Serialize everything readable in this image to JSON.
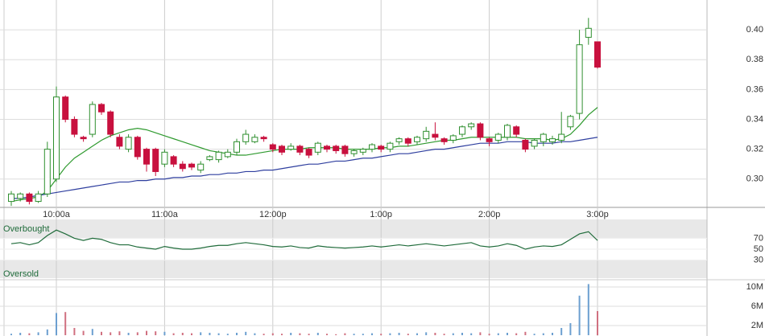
{
  "chart_data": [
    {
      "type": "candlestick",
      "categories": [
        null,
        null,
        null,
        null,
        null,
        "10:00a",
        null,
        null,
        null,
        null,
        null,
        null,
        null,
        null,
        null,
        null,
        null,
        "11:00a",
        null,
        null,
        null,
        null,
        null,
        null,
        null,
        null,
        null,
        null,
        null,
        "12:00p",
        null,
        null,
        null,
        null,
        null,
        null,
        null,
        null,
        null,
        null,
        null,
        "1:00p",
        null,
        null,
        null,
        null,
        null,
        null,
        null,
        null,
        null,
        null,
        null,
        "2:00p",
        null,
        null,
        null,
        null,
        null,
        null,
        null,
        null,
        null,
        null,
        null,
        "3:00p"
      ],
      "open": [
        0.285,
        0.287,
        0.29,
        0.285,
        0.29,
        0.3,
        0.355,
        0.34,
        0.328,
        0.33,
        0.35,
        0.345,
        0.328,
        0.32,
        0.328,
        0.32,
        0.32,
        0.31,
        0.315,
        0.31,
        0.31,
        0.306,
        0.313,
        0.313,
        0.315,
        0.318,
        0.325,
        0.325,
        0.328,
        0.323,
        0.322,
        0.32,
        0.322,
        0.32,
        0.318,
        0.322,
        0.322,
        0.322,
        0.317,
        0.318,
        0.32,
        0.322,
        0.32,
        0.325,
        0.327,
        0.325,
        0.327,
        0.33,
        0.327,
        0.326,
        0.33,
        0.335,
        0.337,
        0.327,
        0.326,
        0.328,
        0.335,
        0.326,
        0.322,
        0.325,
        0.325,
        0.326,
        0.335,
        0.344,
        0.395,
        0.392
      ],
      "high": [
        0.292,
        0.291,
        0.291,
        0.292,
        0.325,
        0.362,
        0.356,
        0.342,
        0.329,
        0.352,
        0.351,
        0.346,
        0.33,
        0.33,
        0.329,
        0.321,
        0.321,
        0.32,
        0.316,
        0.312,
        0.311,
        0.312,
        0.316,
        0.319,
        0.32,
        0.327,
        0.333,
        0.33,
        0.329,
        0.324,
        0.323,
        0.324,
        0.323,
        0.321,
        0.325,
        0.323,
        0.323,
        0.323,
        0.32,
        0.321,
        0.324,
        0.323,
        0.325,
        0.328,
        0.328,
        0.329,
        0.335,
        0.338,
        0.328,
        0.33,
        0.336,
        0.338,
        0.338,
        0.328,
        0.331,
        0.337,
        0.336,
        0.327,
        0.327,
        0.331,
        0.329,
        0.345,
        0.343,
        0.4,
        0.408,
        0.392
      ],
      "low": [
        0.282,
        0.285,
        0.283,
        0.284,
        0.288,
        0.298,
        0.338,
        0.328,
        0.325,
        0.328,
        0.343,
        0.328,
        0.32,
        0.318,
        0.313,
        0.305,
        0.302,
        0.308,
        0.308,
        0.305,
        0.306,
        0.304,
        0.312,
        0.311,
        0.314,
        0.316,
        0.323,
        0.324,
        0.325,
        0.318,
        0.316,
        0.319,
        0.316,
        0.314,
        0.316,
        0.318,
        0.317,
        0.315,
        0.315,
        0.316,
        0.318,
        0.318,
        0.318,
        0.323,
        0.322,
        0.323,
        0.325,
        0.326,
        0.323,
        0.324,
        0.328,
        0.333,
        0.326,
        0.322,
        0.324,
        0.326,
        0.328,
        0.318,
        0.32,
        0.322,
        0.323,
        0.324,
        0.333,
        0.34,
        0.39,
        0.374
      ],
      "close": [
        0.29,
        0.29,
        0.285,
        0.29,
        0.32,
        0.355,
        0.34,
        0.33,
        0.327,
        0.35,
        0.345,
        0.33,
        0.322,
        0.328,
        0.315,
        0.31,
        0.305,
        0.318,
        0.31,
        0.307,
        0.308,
        0.31,
        0.315,
        0.318,
        0.318,
        0.325,
        0.33,
        0.328,
        0.327,
        0.32,
        0.318,
        0.322,
        0.318,
        0.316,
        0.324,
        0.32,
        0.319,
        0.317,
        0.319,
        0.32,
        0.323,
        0.32,
        0.324,
        0.327,
        0.324,
        0.328,
        0.332,
        0.328,
        0.325,
        0.329,
        0.335,
        0.337,
        0.328,
        0.325,
        0.33,
        0.336,
        0.33,
        0.32,
        0.326,
        0.33,
        0.327,
        0.33,
        0.342,
        0.39,
        0.401,
        0.375
      ],
      "up_color": "#2f8f2f",
      "down_color": "#c8103e",
      "lines": [
        {
          "color": "#2f9a2f",
          "values": [
            0.285,
            0.286,
            0.287,
            0.288,
            0.292,
            0.3,
            0.308,
            0.314,
            0.318,
            0.322,
            0.326,
            0.329,
            0.331,
            0.333,
            0.334,
            0.333,
            0.331,
            0.329,
            0.327,
            0.325,
            0.323,
            0.321,
            0.319,
            0.318,
            0.317,
            0.316,
            0.316,
            0.317,
            0.318,
            0.319,
            0.32,
            0.32,
            0.32,
            0.321,
            0.321,
            0.321,
            0.321,
            0.32,
            0.32,
            0.32,
            0.32,
            0.321,
            0.321,
            0.322,
            0.322,
            0.323,
            0.324,
            0.325,
            0.326,
            0.326,
            0.327,
            0.328,
            0.328,
            0.328,
            0.328,
            0.328,
            0.328,
            0.327,
            0.327,
            0.327,
            0.326,
            0.327,
            0.33,
            0.336,
            0.343,
            0.348
          ]
        },
        {
          "color": "#2f3f9f",
          "values": [
            0.287,
            0.287,
            0.288,
            0.289,
            0.29,
            0.291,
            0.292,
            0.293,
            0.294,
            0.295,
            0.296,
            0.297,
            0.298,
            0.298,
            0.299,
            0.299,
            0.3,
            0.3,
            0.301,
            0.301,
            0.302,
            0.302,
            0.303,
            0.303,
            0.304,
            0.304,
            0.305,
            0.305,
            0.306,
            0.306,
            0.307,
            0.308,
            0.309,
            0.31,
            0.31,
            0.311,
            0.312,
            0.312,
            0.313,
            0.314,
            0.314,
            0.315,
            0.316,
            0.317,
            0.317,
            0.318,
            0.319,
            0.32,
            0.32,
            0.321,
            0.322,
            0.323,
            0.324,
            0.324,
            0.324,
            0.325,
            0.325,
            0.325,
            0.324,
            0.324,
            0.324,
            0.325,
            0.325,
            0.326,
            0.327,
            0.328
          ]
        }
      ],
      "ylim": [
        0.281,
        0.42
      ],
      "yticks": [
        {
          "value": 0.3,
          "label": "0.30"
        },
        0.32,
        0.34,
        0.36,
        0.38,
        {
          "value": 0.4,
          "label": "0.40"
        }
      ],
      "grid": true
    },
    {
      "type": "line",
      "annotations": [
        "Overbought",
        "Oversold"
      ],
      "color": "#1f6b3a",
      "values": [
        60,
        62,
        58,
        62,
        75,
        85,
        78,
        70,
        66,
        70,
        68,
        62,
        58,
        58,
        54,
        52,
        50,
        55,
        52,
        50,
        50,
        52,
        55,
        57,
        57,
        60,
        62,
        60,
        58,
        55,
        54,
        56,
        53,
        52,
        56,
        54,
        53,
        52,
        53,
        54,
        56,
        54,
        56,
        58,
        56,
        58,
        60,
        58,
        56,
        58,
        60,
        62,
        56,
        54,
        56,
        60,
        57,
        50,
        54,
        56,
        55,
        58,
        68,
        78,
        82,
        66
      ],
      "ylim": [
        0,
        100
      ],
      "yticks": [
        30,
        50,
        70
      ]
    },
    {
      "type": "bar",
      "up_color": "#6c9fd0",
      "down_color": "#d07080",
      "values": [
        300000,
        500000,
        400000,
        600000,
        1200000,
        4600000,
        4800000,
        1500000,
        900000,
        1300000,
        700000,
        600000,
        800000,
        500000,
        600000,
        900000,
        800000,
        700000,
        400000,
        500000,
        400000,
        600000,
        500000,
        400000,
        300000,
        500000,
        700000,
        400000,
        300000,
        400000,
        300000,
        500000,
        400000,
        300000,
        500000,
        300000,
        200000,
        400000,
        300000,
        300000,
        400000,
        300000,
        400000,
        500000,
        300000,
        400000,
        600000,
        500000,
        300000,
        400000,
        500000,
        400000,
        600000,
        300000,
        400000,
        500000,
        400000,
        700000,
        300000,
        400000,
        500000,
        1500000,
        2500000,
        8200000,
        10600000,
        5000000
      ],
      "ylim": [
        0,
        11000000
      ],
      "yticks": [
        {
          "value": 2000000,
          "label": "2M"
        },
        {
          "value": 6000000,
          "label": "6M"
        },
        {
          "value": 10000000,
          "label": "10M"
        }
      ],
      "grid": true
    }
  ]
}
